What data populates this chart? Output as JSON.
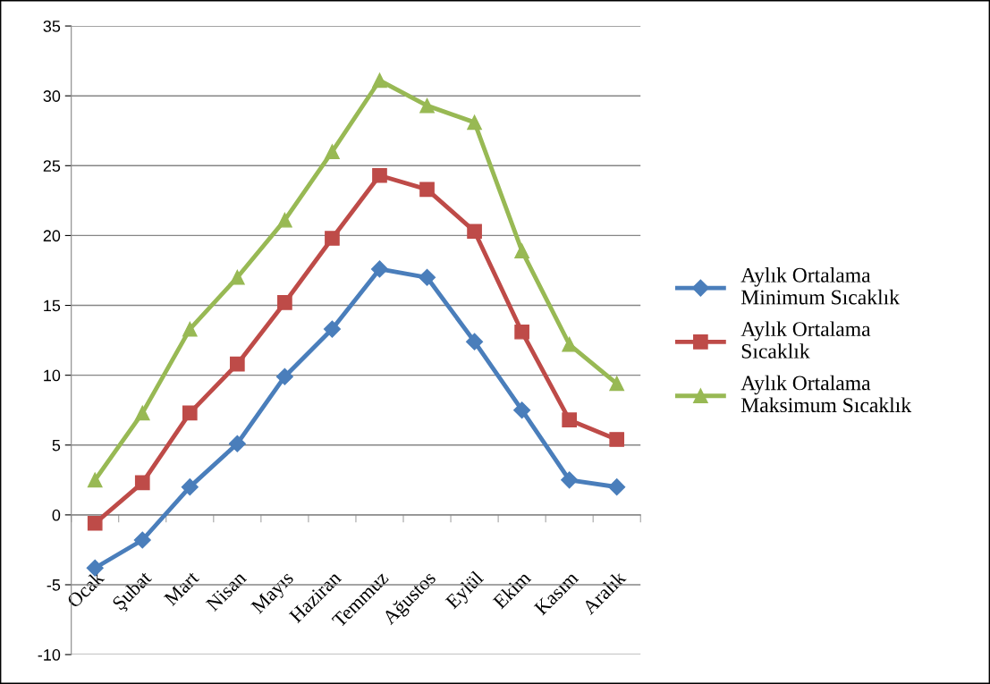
{
  "chart_data": {
    "type": "line",
    "categories": [
      "Ocak",
      "Şubat",
      "Mart",
      "Nisan",
      "Mayıs",
      "Haziran",
      "Temmuz",
      "Ağustos",
      "Eylül",
      "Ekim",
      "Kasım",
      "Aralık"
    ],
    "series": [
      {
        "name": "Aylık Ortalama\nMinimum Sıcaklık",
        "color": "#4a7ebb",
        "marker": "diamond",
        "values": [
          -3.8,
          -1.8,
          2.0,
          5.1,
          9.9,
          13.3,
          17.6,
          17.0,
          12.4,
          7.5,
          2.5,
          2.0
        ]
      },
      {
        "name": "Aylık Ortalama\nSıcaklık",
        "color": "#be4b48",
        "marker": "square",
        "values": [
          -0.6,
          2.3,
          7.3,
          10.8,
          15.2,
          19.8,
          24.3,
          23.3,
          20.3,
          13.1,
          6.8,
          5.4
        ]
      },
      {
        "name": "Aylık Ortalama\nMaksimum Sıcaklık",
        "color": "#98b954",
        "marker": "triangle",
        "values": [
          2.5,
          7.3,
          13.3,
          17.0,
          21.1,
          26.0,
          31.1,
          29.3,
          28.1,
          18.9,
          12.2,
          9.4
        ]
      }
    ],
    "ylim": [
      -10,
      35
    ],
    "yticks": [
      -10,
      -5,
      0,
      5,
      10,
      15,
      20,
      25,
      30,
      35
    ],
    "grid": "y",
    "legend": "right",
    "line_style": "solid"
  }
}
